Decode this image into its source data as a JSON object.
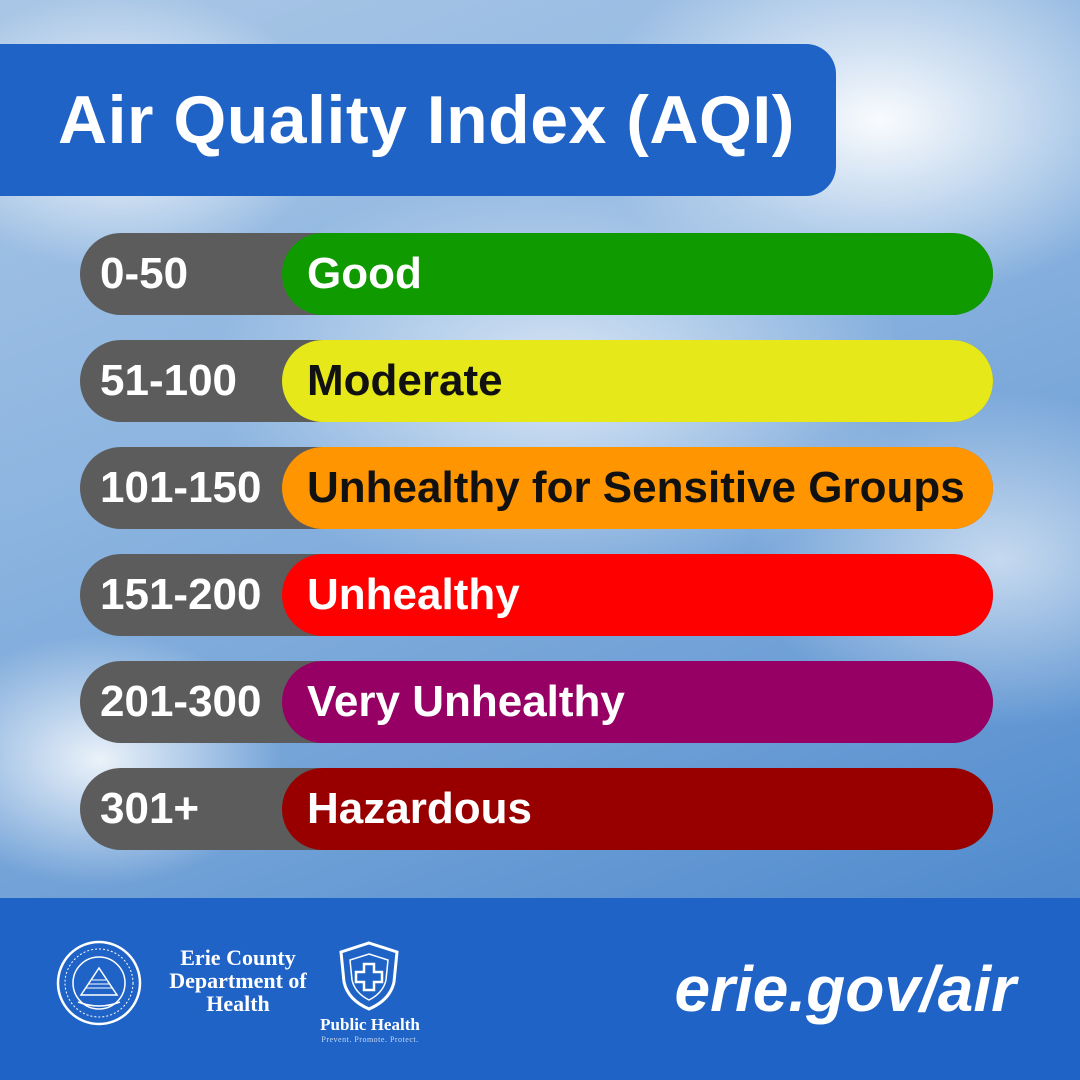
{
  "title": "Air Quality Index (AQI)",
  "categories": [
    {
      "range": "0-50",
      "label": "Good",
      "color": "#0f9a00",
      "text_color": "#ffffff"
    },
    {
      "range": "51-100",
      "label": "Moderate",
      "color": "#e6e81a",
      "text_color": "#111111"
    },
    {
      "range": "101-150",
      "label": "Unhealthy for Sensitive Groups",
      "color": "#ff9500",
      "text_color": "#111111"
    },
    {
      "range": "151-200",
      "label": "Unhealthy",
      "color": "#ff0000",
      "text_color": "#ffffff"
    },
    {
      "range": "201-300",
      "label": "Very Unhealthy",
      "color": "#960064",
      "text_color": "#ffffff"
    },
    {
      "range": "301+",
      "label": "Hazardous",
      "color": "#980000",
      "text_color": "#ffffff"
    }
  ],
  "footer": {
    "org_lines": [
      "Erie County",
      "Department of",
      "Health"
    ],
    "public_health_label": "Public Health",
    "public_health_tagline": "Prevent. Promote. Protect.",
    "url": "erie.gov/air"
  },
  "colors": {
    "brand_blue": "#1f63c7",
    "range_gray": "#5c5c5c"
  },
  "icons": {
    "seal": "county-seal-icon",
    "shield": "public-health-shield-icon"
  }
}
